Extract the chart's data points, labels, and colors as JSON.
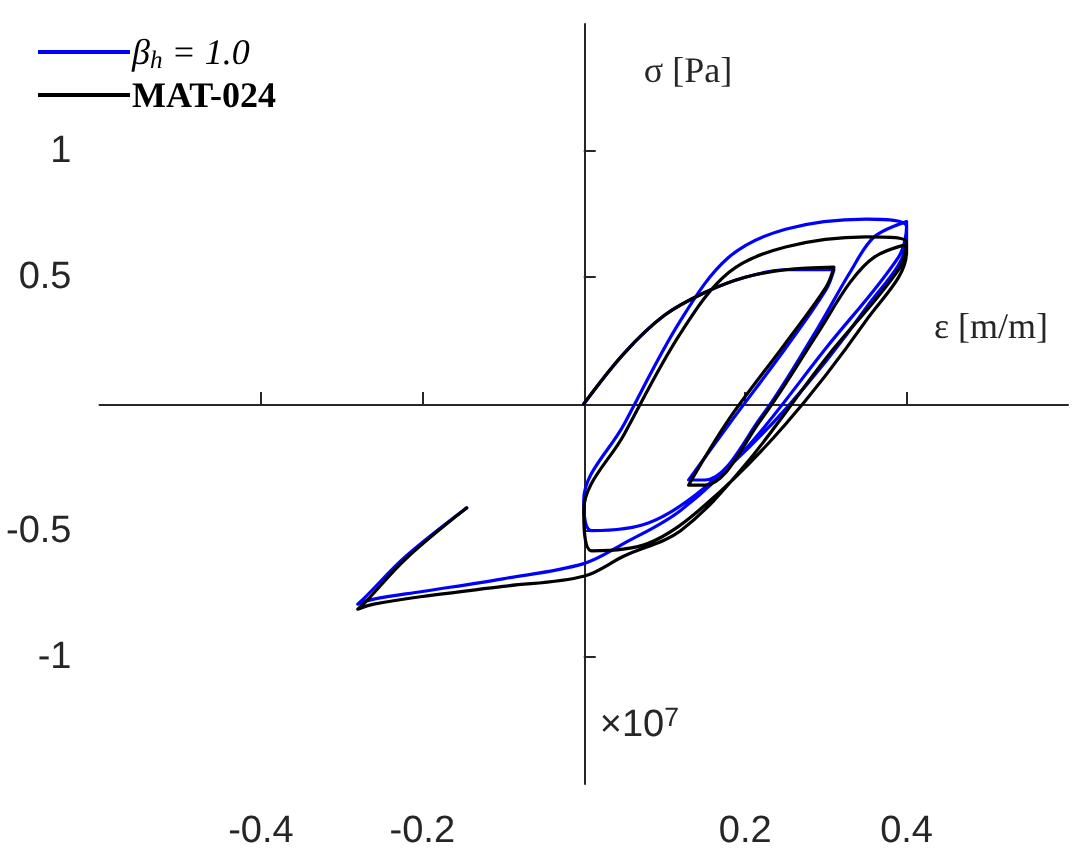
{
  "chart_data": {
    "type": "line",
    "xlabel": "ε [m/m]",
    "ylabel": "σ [Pa]",
    "annotations": [
      "×10$^{7}$"
    ],
    "xlim": [
      -0.6,
      0.6
    ],
    "xticks": [
      -0.4,
      -0.2,
      0.2,
      0.4
    ],
    "ylim": [
      -1.5,
      1.5
    ],
    "yticks": [
      -1,
      -0.5,
      0.5,
      1
    ],
    "grid": false,
    "legend": "top left",
    "marker": "none",
    "line_style": "solid",
    "series": [
      {
        "name": "β$_{h}$ = 1.0",
        "color": "#0000ff",
        "x": [
          0,
          0.05,
          0.1,
          0.15,
          0.2,
          0.25,
          0.31,
          0.3,
          0.25,
          0.18,
          0.13,
          0.15,
          0.22,
          0.29,
          0.33,
          0.36,
          0.4,
          0.4,
          0.35,
          0.25,
          0.15,
          0.08,
          0.01,
          0.0,
          0.05,
          0.12,
          0.18,
          0.25,
          0.35,
          0.4,
          0.39,
          0.3,
          0.2,
          0.12,
          0.05,
          0.0,
          -0.1,
          -0.2,
          -0.26,
          -0.28,
          -0.27,
          -0.22,
          -0.145
        ],
        "values": [
          0,
          0.2,
          0.35,
          0.44,
          0.5,
          0.53,
          0.53,
          0.45,
          0.22,
          -0.08,
          -0.3,
          -0.3,
          -0.05,
          0.3,
          0.52,
          0.66,
          0.72,
          0.65,
          0.38,
          -0.02,
          -0.33,
          -0.47,
          -0.5,
          -0.38,
          -0.08,
          0.33,
          0.58,
          0.69,
          0.73,
          0.7,
          0.58,
          0.22,
          -0.18,
          -0.42,
          -0.55,
          -0.63,
          -0.69,
          -0.74,
          -0.77,
          -0.79,
          -0.76,
          -0.6,
          -0.41
        ]
      },
      {
        "name": "MAT-024",
        "color": "#000000",
        "x": [
          0,
          0.05,
          0.1,
          0.15,
          0.2,
          0.25,
          0.31,
          0.3,
          0.25,
          0.18,
          0.13,
          0.15,
          0.22,
          0.29,
          0.33,
          0.36,
          0.4,
          0.4,
          0.35,
          0.25,
          0.15,
          0.08,
          0.01,
          0.0,
          0.05,
          0.12,
          0.18,
          0.25,
          0.35,
          0.4,
          0.39,
          0.3,
          0.2,
          0.12,
          0.05,
          0.0,
          -0.1,
          -0.2,
          -0.26,
          -0.28,
          -0.27,
          -0.22,
          -0.145
        ],
        "values": [
          0,
          0.2,
          0.35,
          0.44,
          0.5,
          0.53,
          0.54,
          0.46,
          0.24,
          -0.06,
          -0.32,
          -0.32,
          -0.06,
          0.28,
          0.48,
          0.58,
          0.63,
          0.6,
          0.33,
          -0.08,
          -0.4,
          -0.55,
          -0.58,
          -0.42,
          -0.12,
          0.28,
          0.52,
          0.62,
          0.66,
          0.64,
          0.53,
          0.18,
          -0.24,
          -0.5,
          -0.6,
          -0.68,
          -0.72,
          -0.76,
          -0.79,
          -0.81,
          -0.78,
          -0.61,
          -0.41
        ]
      }
    ]
  }
}
